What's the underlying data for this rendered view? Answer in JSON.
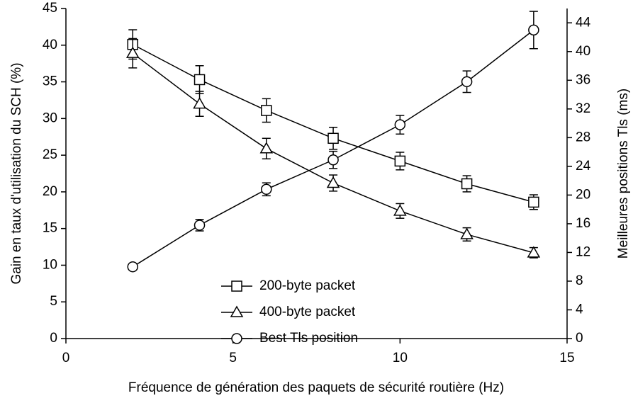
{
  "chart_data": {
    "type": "line",
    "xlabel": "Fréquence de génération des paquets de sécurité routière (Hz)",
    "ylabel": "Gain en taux d'utilisation du SCH (%)",
    "y2label": "Meilleures positions Tls  (ms)",
    "x": [
      2,
      4,
      6,
      8,
      10,
      12,
      14
    ],
    "series": [
      {
        "name": "200-byte packet",
        "color": "#000000",
        "marker": "square",
        "values": [
          40.1,
          35.3,
          31.1,
          27.3,
          24.2,
          21.1,
          18.6
        ],
        "errors": [
          2.0,
          1.9,
          1.6,
          1.5,
          1.2,
          1.1,
          1.0
        ]
      },
      {
        "name": "400-byte packet",
        "color": "#000000",
        "marker": "triangle",
        "values": [
          38.9,
          32.0,
          25.9,
          21.2,
          17.4,
          14.2,
          11.7
        ],
        "errors": [
          2.0,
          1.7,
          1.4,
          1.1,
          1.0,
          0.9,
          0.7
        ]
      },
      {
        "name": "Best Tls position",
        "color": "#000000",
        "marker": "circle",
        "axis": "y2",
        "values": [
          10,
          15.8,
          20.8,
          24.9,
          29.8,
          35.8,
          43
        ],
        "errors": [
          0.3,
          0.8,
          0.9,
          1.2,
          1.3,
          1.5,
          2.6
        ]
      }
    ],
    "xlim": [
      0,
      15
    ],
    "xticks": [
      0,
      5,
      10,
      15
    ],
    "ylim": [
      0,
      45
    ],
    "yticks": [
      0,
      5,
      10,
      15,
      20,
      25,
      30,
      35,
      40,
      45
    ],
    "y2lim": [
      0,
      46
    ],
    "y2ticks": [
      0,
      4,
      8,
      12,
      16,
      20,
      24,
      28,
      32,
      36,
      40,
      44
    ],
    "legend": "lower center"
  }
}
